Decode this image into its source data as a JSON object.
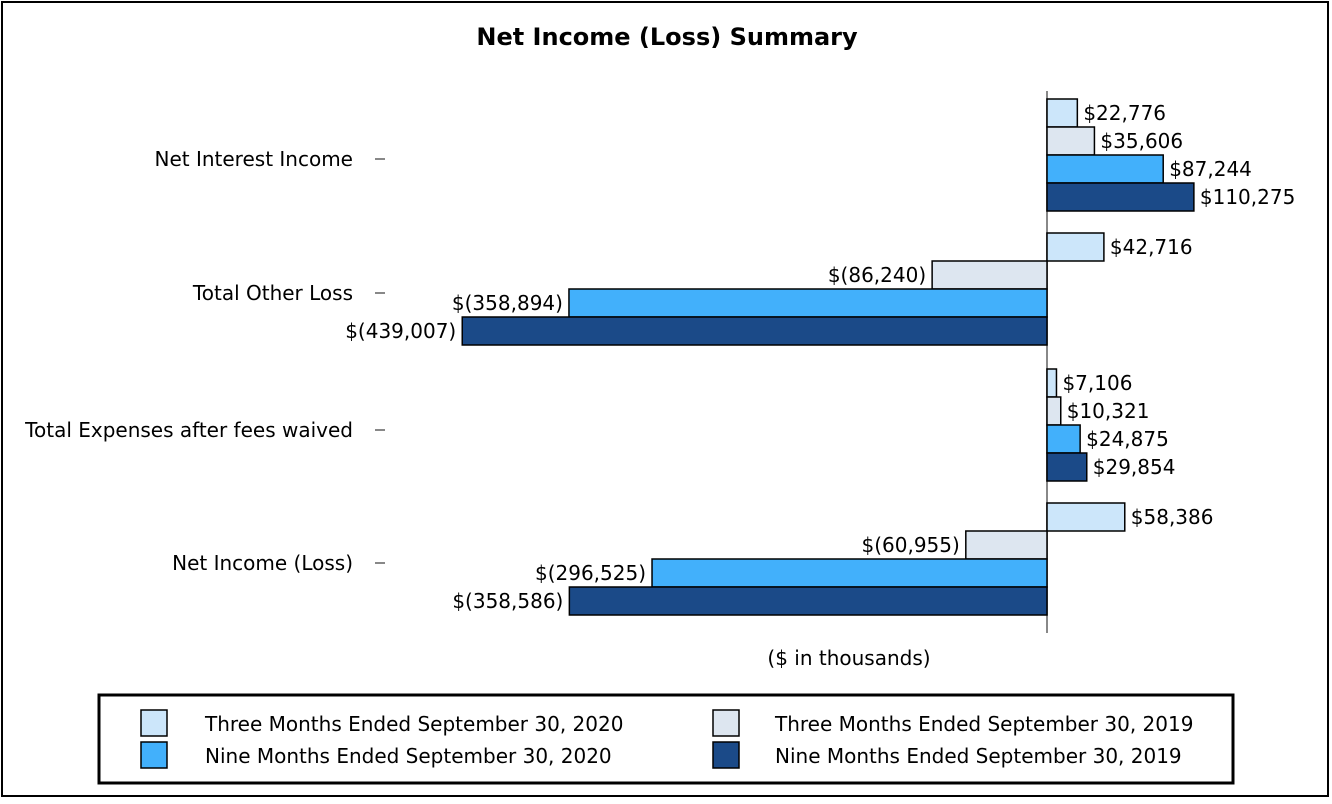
{
  "chart_data": {
    "type": "bar",
    "orientation": "horizontal",
    "title": "Net Income (Loss) Summary",
    "xlabel": "($ in thousands)",
    "categories": [
      "Net Interest Income",
      "Total Other Loss",
      "Total Expenses after fees waived",
      "Net Income (Loss)"
    ],
    "series": [
      {
        "name": "Three Months Ended September 30, 2020",
        "color": "#cce6fa",
        "values": [
          22776,
          42716,
          7106,
          58386
        ],
        "labels": [
          "$22,776",
          "$42,716",
          "$7,106",
          "$58,386"
        ]
      },
      {
        "name": "Three Months Ended September 30, 2019",
        "color": "#dde6f0",
        "values": [
          35606,
          -86240,
          10321,
          -60955
        ],
        "labels": [
          "$35,606",
          "$(86,240)",
          "$10,321",
          "$(60,955)"
        ]
      },
      {
        "name": "Nine Months Ended September 30, 2020",
        "color": "#42b0fb",
        "values": [
          87244,
          -358894,
          24875,
          -296525
        ],
        "labels": [
          "$87,244",
          "$(358,894)",
          "$24,875",
          "$(296,525)"
        ]
      },
      {
        "name": "Nine Months Ended September 30, 2019",
        "color": "#1b4a88",
        "values": [
          110275,
          -439007,
          29854,
          -358586
        ],
        "labels": [
          "$110,275",
          "$(439,007)",
          "$29,854",
          "$(358,586)"
        ]
      }
    ],
    "legend_position": "bottom",
    "grid": false
  }
}
